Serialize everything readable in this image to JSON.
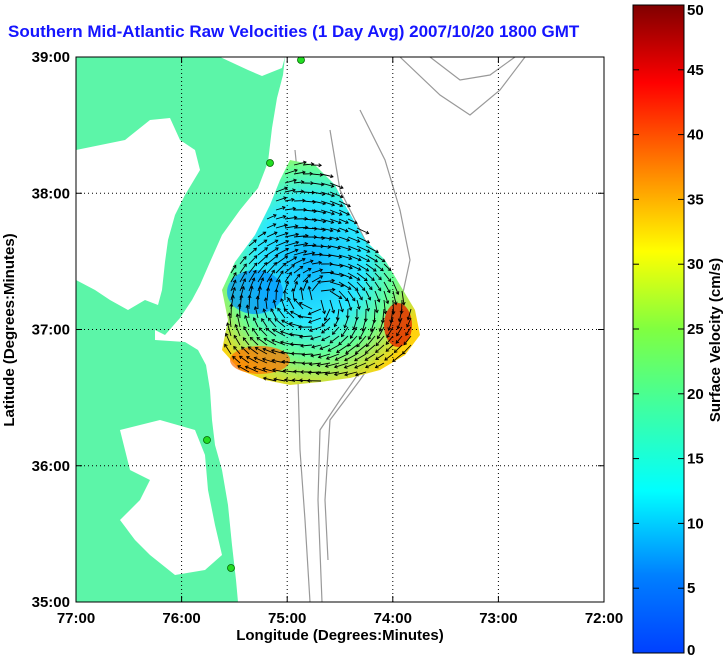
{
  "title": "Southern Mid-Atlantic Raw Velocities (1 Day Avg) 2007/10/20 1800 GMT",
  "x_axis": {
    "label": "Longitude (Degrees:Minutes)",
    "ticks": [
      "77:00",
      "76:00",
      "75:00",
      "74:00",
      "73:00",
      "72:00"
    ]
  },
  "y_axis": {
    "label": "Latitude (Degrees:Minutes)",
    "ticks": [
      "39:00",
      "38:00",
      "37:00",
      "36:00",
      "35:00"
    ]
  },
  "colorbar": {
    "label": "Surface Velocity (cm/s)",
    "ticks": [
      "0",
      "5",
      "10",
      "15",
      "20",
      "25",
      "30",
      "35",
      "40",
      "45",
      "50"
    ],
    "min": 0,
    "max": 50,
    "colormap": "jet"
  },
  "colors": {
    "title": "#1515ff",
    "land": "#5cf5a8",
    "coast_marker": "#22dd22",
    "bathymetry": "#999999",
    "grid": "#000000"
  },
  "map": {
    "lon_range": [
      -77,
      -72
    ],
    "lat_range": [
      35,
      39
    ],
    "grid": "dotted",
    "layers": [
      "land",
      "bathymetry-contours",
      "hf-radar-velocity-field",
      "velocity-vectors"
    ]
  },
  "chart_data": {
    "type": "heatmap",
    "title": "Southern Mid-Atlantic Raw Velocities (1 Day Avg) 2007/10/20 1800 GMT",
    "xlabel": "Longitude (Degrees:Minutes)",
    "ylabel": "Latitude (Degrees:Minutes)",
    "colorbar_label": "Surface Velocity (cm/s)",
    "xlim": [
      -77,
      -72
    ],
    "ylim": [
      35,
      39
    ],
    "clim": [
      0,
      50
    ]
  }
}
